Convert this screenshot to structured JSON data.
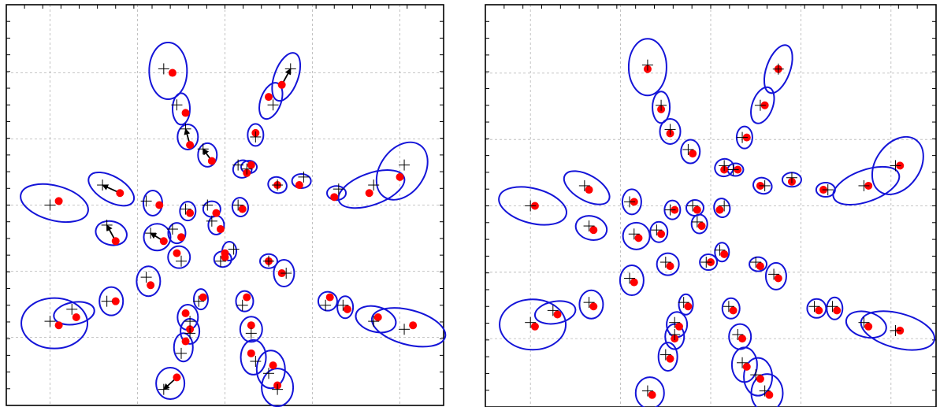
{
  "colors": {
    "ellipse": "#1414d8",
    "estimate": "#ff0000",
    "truth": "#000000",
    "arrow": "#000000",
    "grid": "#b4b4b4",
    "frame": "#000000"
  },
  "chart_data": [
    {
      "type": "scatter",
      "title": "",
      "xlabel": "",
      "ylabel": "",
      "xlim": [
        0,
        10
      ],
      "ylim": [
        0,
        10
      ],
      "grid": true,
      "series": [
        {
          "marker": "plus-sign",
          "values": [
            [
              3.6,
              8.4
            ],
            [
              3.9,
              7.5
            ],
            [
              4.1,
              6.9
            ],
            [
              4.5,
              6.4
            ],
            [
              5.3,
              6.0
            ],
            [
              6.2,
              5.5
            ],
            [
              5.3,
              5.0
            ],
            [
              4.6,
              5.0
            ],
            [
              4.1,
              4.9
            ],
            [
              3.2,
              5.1
            ],
            [
              2.2,
              5.5
            ],
            [
              1.0,
              5.0
            ],
            [
              6.5,
              8.4
            ],
            [
              6.1,
              7.5
            ],
            [
              5.7,
              6.7
            ],
            [
              5.5,
              5.9
            ],
            [
              6.8,
              5.7
            ],
            [
              7.6,
              5.4
            ],
            [
              8.4,
              5.5
            ],
            [
              9.1,
              6.0
            ],
            [
              4.7,
              4.6
            ],
            [
              3.8,
              4.4
            ],
            [
              3.3,
              4.3
            ],
            [
              2.3,
              4.5
            ],
            [
              4.0,
              3.6
            ],
            [
              4.9,
              3.6
            ],
            [
              5.2,
              3.9
            ],
            [
              6.0,
              3.6
            ],
            [
              6.4,
              3.3
            ],
            [
              7.3,
              2.5
            ],
            [
              7.7,
              2.5
            ],
            [
              8.4,
              2.1
            ],
            [
              9.1,
              1.9
            ],
            [
              3.2,
              3.2
            ],
            [
              2.3,
              2.6
            ],
            [
              1.5,
              2.4
            ],
            [
              1.0,
              2.1
            ],
            [
              4.4,
              2.6
            ],
            [
              4.2,
              2.1
            ],
            [
              4.2,
              1.8
            ],
            [
              4.0,
              1.3
            ],
            [
              3.6,
              0.4
            ],
            [
              5.4,
              2.5
            ],
            [
              5.6,
              1.8
            ],
            [
              5.7,
              1.1
            ],
            [
              6.0,
              0.8
            ],
            [
              6.2,
              0.4
            ]
          ]
        },
        {
          "marker": "filled-circle",
          "values": [
            [
              3.8,
              8.3
            ],
            [
              4.1,
              7.3
            ],
            [
              4.2,
              6.5
            ],
            [
              4.7,
              6.1
            ],
            [
              5.5,
              5.8
            ],
            [
              6.2,
              5.5
            ],
            [
              5.4,
              4.9
            ],
            [
              4.8,
              4.8
            ],
            [
              4.2,
              4.8
            ],
            [
              3.5,
              5.0
            ],
            [
              2.6,
              5.3
            ],
            [
              1.2,
              5.1
            ],
            [
              6.3,
              8.0
            ],
            [
              6.0,
              7.7
            ],
            [
              5.7,
              6.8
            ],
            [
              5.6,
              6.0
            ],
            [
              6.7,
              5.5
            ],
            [
              7.5,
              5.2
            ],
            [
              8.3,
              5.3
            ],
            [
              9.0,
              5.7
            ],
            [
              4.9,
              4.4
            ],
            [
              4.0,
              4.2
            ],
            [
              3.6,
              4.1
            ],
            [
              2.5,
              4.1
            ],
            [
              3.9,
              3.8
            ],
            [
              5.0,
              3.7
            ],
            [
              5.0,
              3.8
            ],
            [
              6.0,
              3.6
            ],
            [
              6.3,
              3.3
            ],
            [
              7.4,
              2.7
            ],
            [
              7.8,
              2.4
            ],
            [
              8.5,
              2.2
            ],
            [
              9.3,
              2.0
            ],
            [
              3.3,
              3.0
            ],
            [
              2.5,
              2.6
            ],
            [
              1.6,
              2.2
            ],
            [
              1.2,
              2.0
            ],
            [
              4.5,
              2.7
            ],
            [
              4.1,
              2.3
            ],
            [
              4.2,
              1.9
            ],
            [
              4.1,
              1.6
            ],
            [
              3.9,
              0.7
            ],
            [
              5.5,
              2.7
            ],
            [
              5.6,
              2.0
            ],
            [
              5.6,
              1.3
            ],
            [
              6.1,
              1.0
            ],
            [
              6.2,
              0.5
            ]
          ]
        }
      ]
    },
    {
      "type": "scatter",
      "title": "",
      "xlabel": "",
      "ylabel": "",
      "xlim": [
        0,
        10
      ],
      "ylim": [
        0,
        10
      ],
      "grid": true,
      "series": [
        {
          "marker": "plus-sign",
          "values": [
            [
              3.6,
              8.5
            ],
            [
              3.9,
              7.5
            ],
            [
              4.1,
              6.9
            ],
            [
              4.5,
              6.4
            ],
            [
              5.3,
              6.0
            ],
            [
              6.2,
              5.5
            ],
            [
              5.3,
              5.0
            ],
            [
              4.6,
              5.0
            ],
            [
              4.1,
              4.9
            ],
            [
              3.2,
              5.1
            ],
            [
              2.2,
              5.5
            ],
            [
              1.0,
              5.0
            ],
            [
              6.5,
              8.4
            ],
            [
              6.1,
              7.5
            ],
            [
              5.7,
              6.7
            ],
            [
              5.5,
              5.9
            ],
            [
              6.8,
              5.7
            ],
            [
              7.6,
              5.4
            ],
            [
              8.4,
              5.5
            ],
            [
              9.1,
              6.0
            ],
            [
              4.7,
              4.6
            ],
            [
              3.8,
              4.4
            ],
            [
              3.3,
              4.3
            ],
            [
              2.3,
              4.5
            ],
            [
              4.0,
              3.6
            ],
            [
              4.9,
              3.6
            ],
            [
              5.2,
              3.9
            ],
            [
              6.0,
              3.6
            ],
            [
              6.4,
              3.3
            ],
            [
              7.3,
              2.5
            ],
            [
              7.7,
              2.5
            ],
            [
              8.4,
              2.1
            ],
            [
              9.1,
              1.9
            ],
            [
              3.2,
              3.2
            ],
            [
              2.3,
              2.6
            ],
            [
              1.5,
              2.4
            ],
            [
              1.0,
              2.1
            ],
            [
              4.4,
              2.6
            ],
            [
              4.2,
              2.1
            ],
            [
              4.2,
              1.8
            ],
            [
              4.0,
              1.3
            ],
            [
              3.6,
              0.4
            ],
            [
              5.4,
              2.5
            ],
            [
              5.6,
              1.8
            ],
            [
              5.7,
              1.1
            ],
            [
              6.0,
              0.8
            ],
            [
              6.2,
              0.4
            ]
          ]
        },
        {
          "marker": "filled-circle",
          "values": [
            [
              3.6,
              8.4
            ],
            [
              3.9,
              7.4
            ],
            [
              4.1,
              6.8
            ],
            [
              4.6,
              6.3
            ],
            [
              5.3,
              5.9
            ],
            [
              6.1,
              5.5
            ],
            [
              5.2,
              4.9
            ],
            [
              4.7,
              4.9
            ],
            [
              4.2,
              4.9
            ],
            [
              3.3,
              5.1
            ],
            [
              2.3,
              5.4
            ],
            [
              1.1,
              5.0
            ],
            [
              6.5,
              8.4
            ],
            [
              6.2,
              7.5
            ],
            [
              5.8,
              6.7
            ],
            [
              5.6,
              5.9
            ],
            [
              6.8,
              5.6
            ],
            [
              7.5,
              5.4
            ],
            [
              8.5,
              5.5
            ],
            [
              9.2,
              6.0
            ],
            [
              4.8,
              4.5
            ],
            [
              3.9,
              4.3
            ],
            [
              3.4,
              4.2
            ],
            [
              2.4,
              4.4
            ],
            [
              4.1,
              3.5
            ],
            [
              5.0,
              3.6
            ],
            [
              5.3,
              3.8
            ],
            [
              6.1,
              3.5
            ],
            [
              6.5,
              3.2
            ],
            [
              7.4,
              2.4
            ],
            [
              7.8,
              2.4
            ],
            [
              8.5,
              2.0
            ],
            [
              9.2,
              1.9
            ],
            [
              3.3,
              3.1
            ],
            [
              2.4,
              2.5
            ],
            [
              1.6,
              2.3
            ],
            [
              1.1,
              2.0
            ],
            [
              4.5,
              2.5
            ],
            [
              4.3,
              2.0
            ],
            [
              4.2,
              1.7
            ],
            [
              4.1,
              1.2
            ],
            [
              3.7,
              0.3
            ],
            [
              5.5,
              2.4
            ],
            [
              5.7,
              1.7
            ],
            [
              5.8,
              1.0
            ],
            [
              6.1,
              0.7
            ],
            [
              6.3,
              0.3
            ]
          ]
        }
      ]
    }
  ]
}
